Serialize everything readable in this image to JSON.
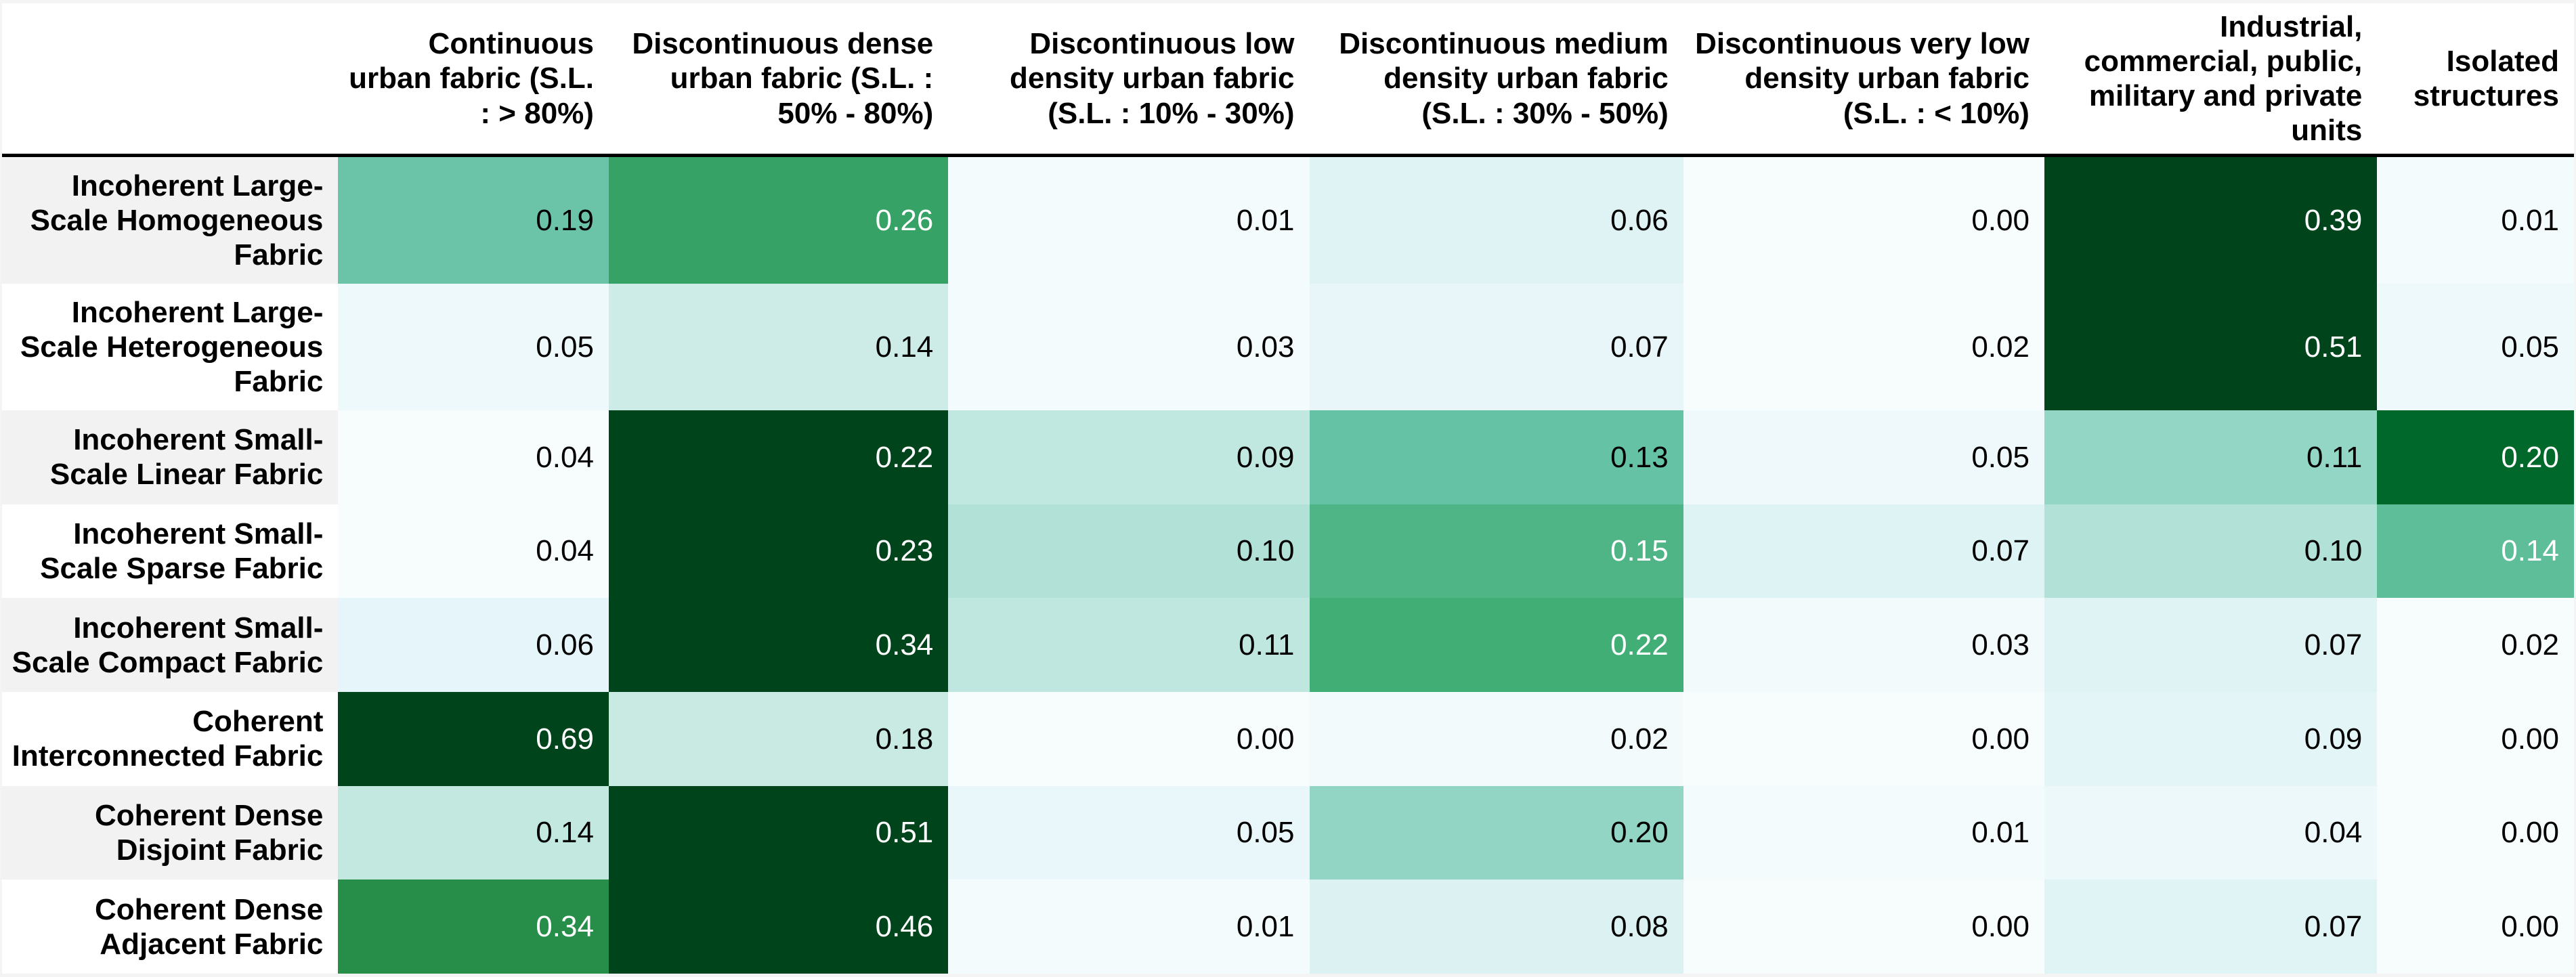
{
  "chart_data": {
    "type": "heatmap",
    "title": "",
    "columns": [
      "Continuous urban fabric (S.L. : > 80%)",
      "Discontinuous dense urban fabric (S.L. : 50% - 80%)",
      "Discontinuous low density urban fabric (S.L. : 10% - 30%)",
      "Discontinuous medium density urban fabric (S.L. : 30% - 50%)",
      "Discontinuous very low density urban fabric (S.L. : < 10%)",
      "Industrial, commercial, public, military and private units",
      "Isolated structures"
    ],
    "rows": [
      "Incoherent Large-Scale Homogeneous Fabric",
      "Incoherent Large-Scale Heterogeneous Fabric",
      "Incoherent Small-Scale Linear Fabric",
      "Incoherent Small-Scale Sparse Fabric",
      "Incoherent Small-Scale Compact Fabric",
      "Coherent Interconnected Fabric",
      "Coherent Dense Disjoint Fabric",
      "Coherent Dense Adjacent Fabric"
    ],
    "values": [
      [
        0.19,
        0.26,
        0.01,
        0.06,
        0.0,
        0.39,
        0.01
      ],
      [
        0.05,
        0.14,
        0.03,
        0.07,
        0.02,
        0.51,
        0.05
      ],
      [
        0.04,
        0.22,
        0.09,
        0.13,
        0.05,
        0.11,
        0.2
      ],
      [
        0.04,
        0.23,
        0.1,
        0.15,
        0.07,
        0.1,
        0.14
      ],
      [
        0.06,
        0.34,
        0.11,
        0.22,
        0.03,
        0.07,
        0.02
      ],
      [
        0.69,
        0.18,
        0.0,
        0.02,
        0.0,
        0.09,
        0.0
      ],
      [
        0.14,
        0.51,
        0.05,
        0.2,
        0.01,
        0.04,
        0.0
      ],
      [
        0.34,
        0.46,
        0.01,
        0.08,
        0.0,
        0.07,
        0.0
      ]
    ],
    "value_decimals": 2,
    "colormap": {
      "name": "BuGn",
      "stops": [
        "#f7fcfd",
        "#e5f5f9",
        "#ccece6",
        "#99d8c9",
        "#66c2a4",
        "#41ae76",
        "#238b45",
        "#006d2c",
        "#00441b"
      ],
      "normalization": "row-minmax",
      "luminance_threshold": 0.416
    },
    "legend": "none",
    "grid": "off",
    "colors": {
      "dark_text": "#000000",
      "light_text": "#ffffff",
      "header_rule": "#000000",
      "row_label_bg_odd": "#f2f2f2",
      "row_label_bg_even": "#ffffff",
      "header_bg": "#ffffff",
      "table_bg": "#ffffff",
      "page_bg": "#f4f4f4"
    }
  }
}
